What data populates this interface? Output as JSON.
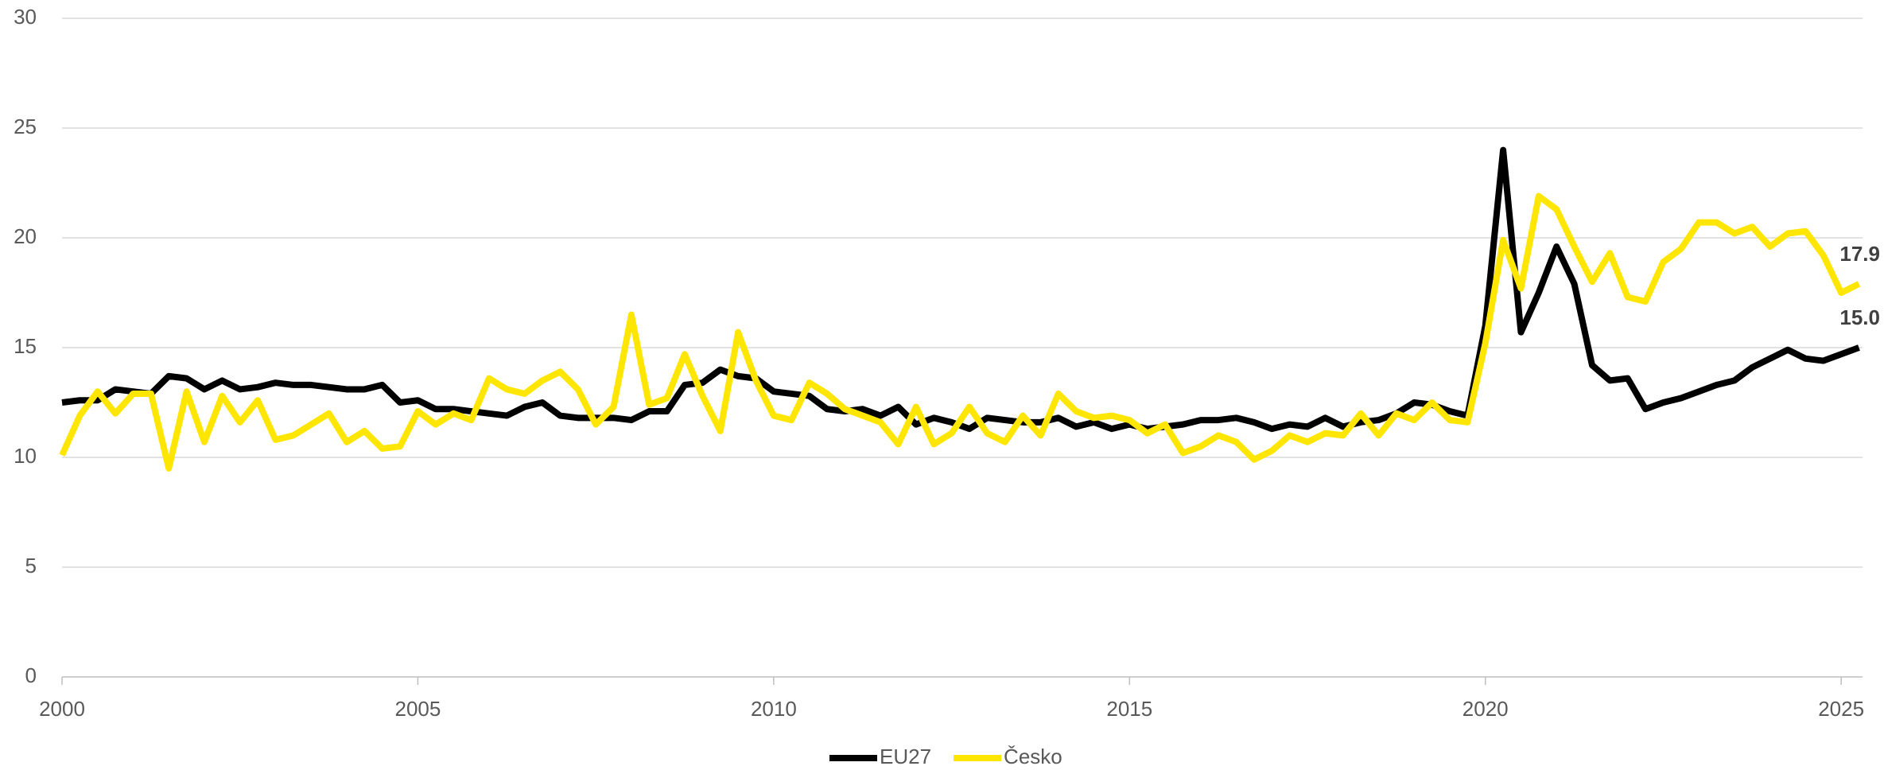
{
  "chart_data": {
    "type": "line",
    "x": [
      2000,
      2000.25,
      2000.5,
      2000.75,
      2001,
      2001.25,
      2001.5,
      2001.75,
      2002,
      2002.25,
      2002.5,
      2002.75,
      2003,
      2003.25,
      2003.5,
      2003.75,
      2004,
      2004.25,
      2004.5,
      2004.75,
      2005,
      2005.25,
      2005.5,
      2005.75,
      2006,
      2006.25,
      2006.5,
      2006.75,
      2007,
      2007.25,
      2007.5,
      2007.75,
      2008,
      2008.25,
      2008.5,
      2008.75,
      2009,
      2009.25,
      2009.5,
      2009.75,
      2010,
      2010.25,
      2010.5,
      2010.75,
      2011,
      2011.25,
      2011.5,
      2011.75,
      2012,
      2012.25,
      2012.5,
      2012.75,
      2013,
      2013.25,
      2013.5,
      2013.75,
      2014,
      2014.25,
      2014.5,
      2014.75,
      2015,
      2015.25,
      2015.5,
      2015.75,
      2016,
      2016.25,
      2016.5,
      2016.75,
      2017,
      2017.25,
      2017.5,
      2017.75,
      2018,
      2018.25,
      2018.5,
      2018.75,
      2019,
      2019.25,
      2019.5,
      2019.75,
      2020,
      2020.25,
      2020.5,
      2020.75,
      2021,
      2021.25,
      2021.5,
      2021.75,
      2022,
      2022.25,
      2022.5,
      2022.75,
      2023,
      2023.25,
      2023.5,
      2023.75,
      2024,
      2024.25,
      2024.5,
      2024.75,
      2025,
      2025.25
    ],
    "series": [
      {
        "name": "EU27",
        "color": "#000000",
        "values": [
          12.5,
          12.6,
          12.6,
          13.1,
          13.0,
          12.9,
          13.7,
          13.6,
          13.1,
          13.5,
          13.1,
          13.2,
          13.4,
          13.3,
          13.3,
          13.2,
          13.1,
          13.1,
          13.3,
          12.5,
          12.6,
          12.2,
          12.2,
          12.1,
          12.0,
          11.9,
          12.3,
          12.5,
          11.9,
          11.8,
          11.8,
          11.8,
          11.7,
          12.1,
          12.1,
          13.3,
          13.4,
          14.0,
          13.7,
          13.6,
          13.0,
          12.9,
          12.8,
          12.2,
          12.1,
          12.2,
          11.9,
          12.3,
          11.5,
          11.8,
          11.6,
          11.3,
          11.8,
          11.7,
          11.6,
          11.6,
          11.8,
          11.4,
          11.6,
          11.3,
          11.5,
          11.3,
          11.4,
          11.5,
          11.7,
          11.7,
          11.8,
          11.6,
          11.3,
          11.5,
          11.4,
          11.8,
          11.4,
          11.6,
          11.7,
          12.0,
          12.5,
          12.4,
          12.1,
          11.9,
          16.0,
          24.0,
          15.7,
          17.5,
          19.6,
          17.9,
          14.2,
          13.5,
          13.6,
          12.2,
          12.5,
          12.7,
          13.0,
          13.3,
          13.5,
          14.1,
          14.5,
          14.9,
          14.5,
          14.4,
          14.7,
          15.0
        ],
        "value_labels": [
          null,
          null,
          null,
          null,
          null,
          null,
          null,
          null,
          null,
          null,
          null,
          null,
          null,
          null,
          null,
          null,
          null,
          null,
          null,
          null,
          null,
          null,
          null,
          null,
          null,
          null,
          null,
          null,
          null,
          null,
          null,
          null,
          null,
          null,
          null,
          null,
          null,
          null,
          null,
          null,
          null,
          null,
          null,
          null,
          null,
          null,
          null,
          null,
          null,
          null,
          null,
          null,
          null,
          null,
          null,
          null,
          null,
          null,
          null,
          null,
          null,
          null,
          null,
          null,
          null,
          null,
          null,
          null,
          null,
          null,
          null,
          null,
          null,
          null,
          null,
          null,
          null,
          null,
          null,
          null,
          null,
          null,
          null,
          null,
          null,
          null,
          null,
          null,
          null,
          null,
          null,
          null,
          null,
          null,
          null,
          null,
          null,
          null,
          null,
          null,
          null,
          "15.0"
        ]
      },
      {
        "name": "Česko",
        "color": "#ffe600",
        "values": [
          10.1,
          11.9,
          13.0,
          12.0,
          12.9,
          12.9,
          9.5,
          13.0,
          10.7,
          12.8,
          11.6,
          12.6,
          10.8,
          11.0,
          11.5,
          12.0,
          10.7,
          11.2,
          10.4,
          10.5,
          12.1,
          11.5,
          12.0,
          11.7,
          13.6,
          13.1,
          12.9,
          13.5,
          13.9,
          13.1,
          11.5,
          12.3,
          16.5,
          12.4,
          12.7,
          14.7,
          12.8,
          11.2,
          15.7,
          13.5,
          11.9,
          11.7,
          13.4,
          12.9,
          12.2,
          11.9,
          11.6,
          10.6,
          12.3,
          10.6,
          11.1,
          12.3,
          11.1,
          10.7,
          11.9,
          11.0,
          12.9,
          12.1,
          11.8,
          11.9,
          11.7,
          11.1,
          11.5,
          10.2,
          10.5,
          11.0,
          10.7,
          9.9,
          10.3,
          11.0,
          10.7,
          11.1,
          11.0,
          12.0,
          11.0,
          12.0,
          11.7,
          12.5,
          11.7,
          11.6,
          15.2,
          19.9,
          17.7,
          21.9,
          21.3,
          19.6,
          18.0,
          19.3,
          17.3,
          17.1,
          18.9,
          19.5,
          20.7,
          20.7,
          20.2,
          20.5,
          19.6,
          20.2,
          20.3,
          19.2,
          17.5,
          17.9
        ],
        "value_labels": [
          null,
          null,
          null,
          null,
          null,
          null,
          null,
          null,
          null,
          null,
          null,
          null,
          null,
          null,
          null,
          null,
          null,
          null,
          null,
          null,
          null,
          null,
          null,
          null,
          null,
          null,
          null,
          null,
          null,
          null,
          null,
          null,
          null,
          null,
          null,
          null,
          null,
          null,
          null,
          null,
          null,
          null,
          null,
          null,
          null,
          null,
          null,
          null,
          null,
          null,
          null,
          null,
          null,
          null,
          null,
          null,
          null,
          null,
          null,
          null,
          null,
          null,
          null,
          null,
          null,
          null,
          null,
          null,
          null,
          null,
          null,
          null,
          null,
          null,
          null,
          null,
          null,
          null,
          null,
          null,
          null,
          null,
          null,
          null,
          null,
          null,
          null,
          null,
          null,
          null,
          null,
          null,
          null,
          null,
          null,
          null,
          null,
          null,
          null,
          null,
          null,
          "17.9"
        ]
      }
    ],
    "xlim": [
      2000,
      2025.3
    ],
    "xticks": [
      2000,
      2005,
      2010,
      2015,
      2020,
      2025
    ],
    "ylim": [
      0,
      30
    ],
    "yticks": [
      0,
      5,
      10,
      15,
      20,
      25,
      30
    ],
    "grid": true,
    "legend": "bottom"
  }
}
